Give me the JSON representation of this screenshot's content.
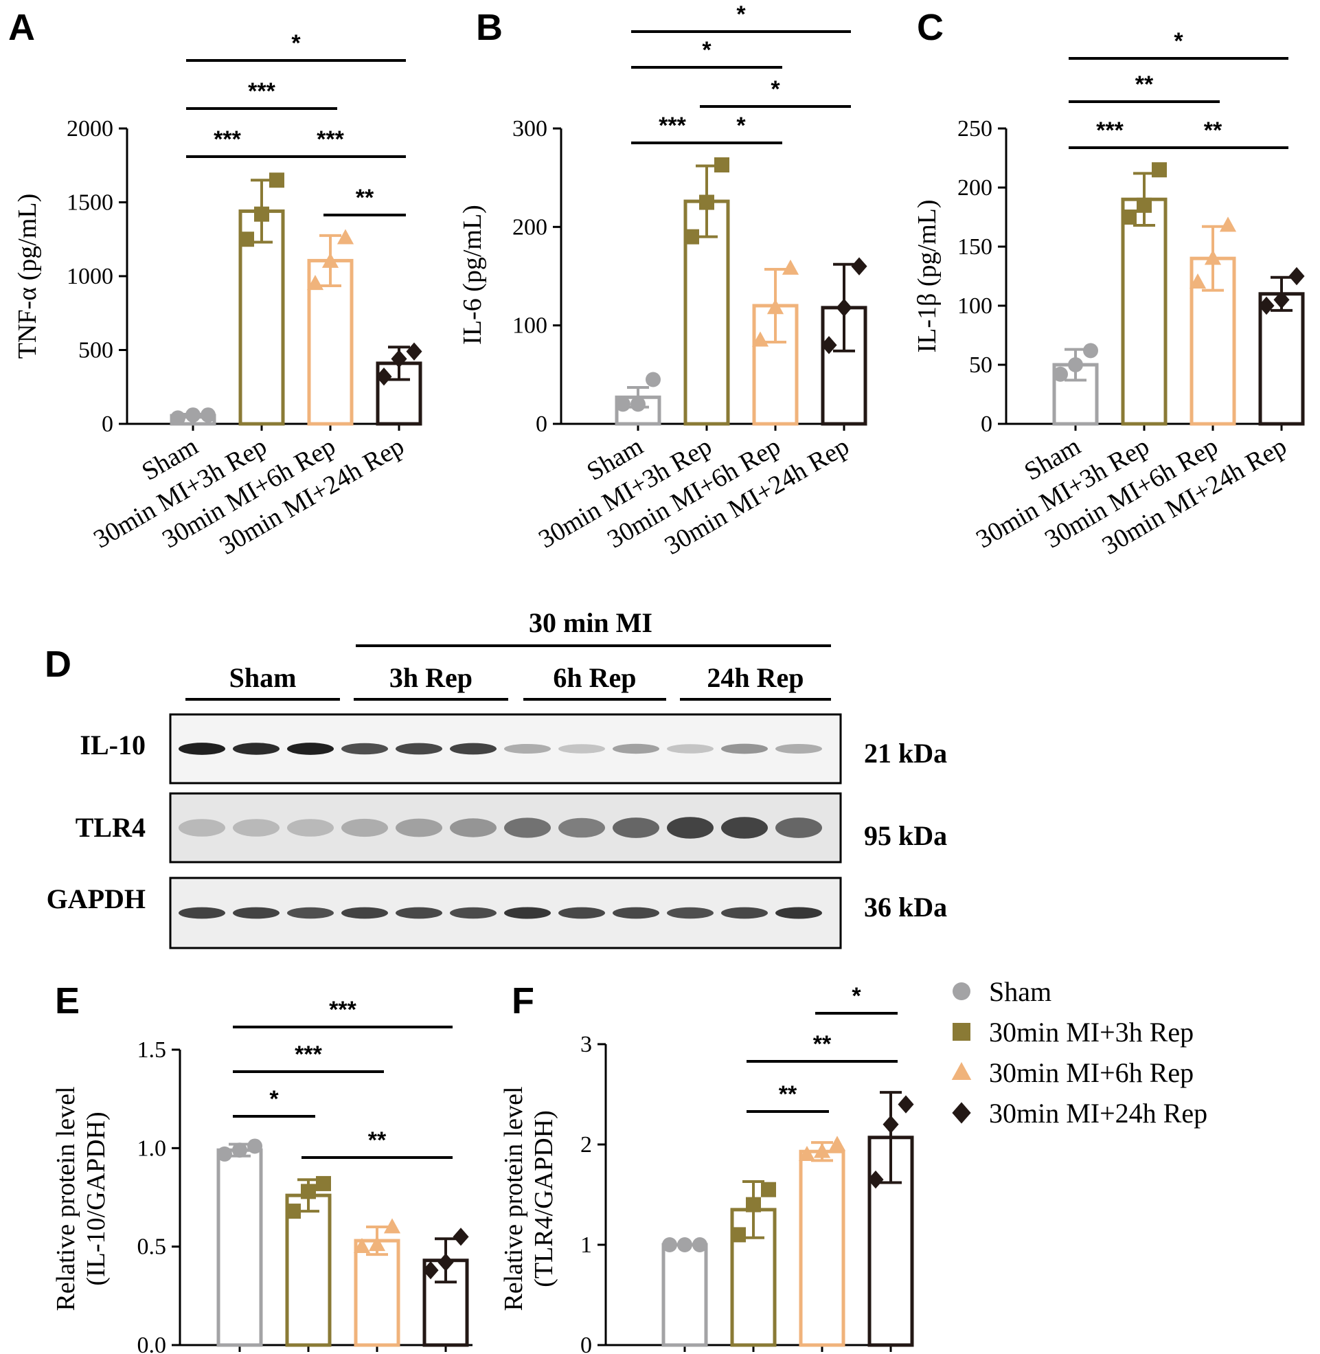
{
  "panel_letters": {
    "a": "A",
    "b": "B",
    "c": "C",
    "d": "D",
    "e": "E",
    "f": "F"
  },
  "colors": {
    "Sham": "#a3a3a5",
    "30min MI+3h Rep": "#8a7a35",
    "30min MI+6h Rep": "#f0b37b",
    "30min MI+24h Rep": "#231815"
  },
  "groups": [
    "Sham",
    "30min MI+3h Rep",
    "30min MI+6h Rep",
    "30min MI+24h Rep"
  ],
  "markers": [
    "circle",
    "square",
    "triangle",
    "diamond"
  ],
  "chart_data": [
    {
      "id": "A",
      "type": "bar",
      "categories": [
        "Sham",
        "30min MI+3h Rep",
        "30min MI+6h Rep",
        "30min MI+24h Rep"
      ],
      "values": [
        55,
        1440,
        1105,
        410
      ],
      "errors": [
        10,
        210,
        170,
        110
      ],
      "points": [
        [
          40,
          60,
          60
        ],
        [
          1250,
          1420,
          1650
        ],
        [
          950,
          1100,
          1260
        ],
        [
          320,
          440,
          490
        ]
      ],
      "ylabel": "TNF-α (pg/mL)",
      "ylim": [
        0,
        2000
      ],
      "yticks": [
        "0",
        "500",
        "1000",
        "1500",
        "2000"
      ],
      "significance": [
        {
          "from": 0,
          "to": 3,
          "label": "*"
        },
        {
          "from": 0,
          "to": 2,
          "label": "***"
        },
        {
          "from": 0,
          "to": 1,
          "label": "***"
        },
        {
          "from": 1,
          "to": 3,
          "label": "***"
        },
        {
          "from": 2,
          "to": 3,
          "label": "**"
        }
      ]
    },
    {
      "id": "B",
      "type": "bar",
      "categories": [
        "Sham",
        "30min MI+3h Rep",
        "30min MI+6h Rep",
        "30min MI+24h Rep"
      ],
      "values": [
        27,
        226,
        120,
        118
      ],
      "errors": [
        10,
        36,
        37,
        44
      ],
      "points": [
        [
          20,
          20,
          45
        ],
        [
          190,
          225,
          263
        ],
        [
          85,
          118,
          158
        ],
        [
          80,
          118,
          160
        ]
      ],
      "ylabel": "IL-6 (pg/mL)",
      "ylim": [
        0,
        300
      ],
      "yticks": [
        "0",
        "100",
        "200",
        "300"
      ],
      "significance": [
        {
          "from": 0,
          "to": 3,
          "label": "*"
        },
        {
          "from": 0,
          "to": 2,
          "label": "*"
        },
        {
          "from": 1,
          "to": 3,
          "label": "*"
        },
        {
          "from": 0,
          "to": 1,
          "label": "***"
        },
        {
          "from": 1,
          "to": 2,
          "label": "*"
        }
      ]
    },
    {
      "id": "C",
      "type": "bar",
      "categories": [
        "Sham",
        "30min MI+3h Rep",
        "30min MI+6h Rep",
        "30min MI+24h Rep"
      ],
      "values": [
        50,
        190,
        140,
        110
      ],
      "errors": [
        13,
        22,
        27,
        14
      ],
      "points": [
        [
          42,
          50,
          62
        ],
        [
          175,
          185,
          215
        ],
        [
          120,
          140,
          168
        ],
        [
          100,
          105,
          125
        ]
      ],
      "ylabel": "IL-1β (pg/mL)",
      "ylim": [
        0,
        250
      ],
      "yticks": [
        "0",
        "50",
        "100",
        "150",
        "200",
        "250"
      ],
      "significance": [
        {
          "from": 0,
          "to": 3,
          "label": "*"
        },
        {
          "from": 0,
          "to": 2,
          "label": "**"
        },
        {
          "from": 0,
          "to": 1,
          "label": "***"
        },
        {
          "from": 1,
          "to": 3,
          "label": "**"
        }
      ]
    },
    {
      "id": "E",
      "type": "bar",
      "categories": [
        "Sham",
        "30min MI+3h Rep",
        "30min MI+6h Rep",
        "30min MI+24h Rep"
      ],
      "values": [
        0.99,
        0.76,
        0.53,
        0.43
      ],
      "errors": [
        0.03,
        0.08,
        0.07,
        0.11
      ],
      "points": [
        [
          0.97,
          0.99,
          1.01
        ],
        [
          0.68,
          0.78,
          0.82
        ],
        [
          0.5,
          0.51,
          0.6
        ],
        [
          0.38,
          0.42,
          0.55
        ]
      ],
      "ylabel": "Relative protein level (IL-10/GAPDH)",
      "ylim": [
        0,
        1.5
      ],
      "yticks": [
        "0.0",
        "0.5",
        "1.0",
        "1.5"
      ],
      "significance": [
        {
          "from": 0,
          "to": 3,
          "label": "***"
        },
        {
          "from": 0,
          "to": 2,
          "label": "***"
        },
        {
          "from": 0,
          "to": 1,
          "label": "*"
        },
        {
          "from": 1,
          "to": 3,
          "label": "**"
        }
      ]
    },
    {
      "id": "F",
      "type": "bar",
      "categories": [
        "Sham",
        "30min MI+3h Rep",
        "30min MI+6h Rep",
        "30min MI+24h Rep"
      ],
      "values": [
        1.0,
        1.35,
        1.93,
        2.07
      ],
      "errors": [
        0.0,
        0.28,
        0.09,
        0.45
      ],
      "points": [
        [
          1.0,
          1.0,
          1.0
        ],
        [
          1.1,
          1.4,
          1.55
        ],
        [
          1.9,
          1.93,
          2.0
        ],
        [
          1.65,
          2.2,
          2.4
        ]
      ],
      "ylabel": "Relative protein level (TLR4/GAPDH)",
      "ylim": [
        0,
        3
      ],
      "yticks": [
        "0",
        "1",
        "2",
        "3"
      ],
      "significance": [
        {
          "from": 2,
          "to": 3,
          "label": "*"
        },
        {
          "from": 1,
          "to": 3,
          "label": "**"
        },
        {
          "from": 1,
          "to": 2,
          "label": "**"
        }
      ]
    }
  ],
  "blot": {
    "top_label": "30 min MI",
    "group_labels": [
      "Sham",
      "3h Rep",
      "6h Rep",
      "24h Rep"
    ],
    "rows": [
      {
        "name": "IL-10",
        "size": "21 kDa",
        "intensity": [
          0.95,
          0.9,
          0.95,
          0.75,
          0.78,
          0.8,
          0.35,
          0.25,
          0.4,
          0.25,
          0.45,
          0.35
        ]
      },
      {
        "name": "TLR4",
        "size": "95 kDa",
        "intensity": [
          0.3,
          0.3,
          0.3,
          0.35,
          0.4,
          0.45,
          0.6,
          0.55,
          0.65,
          0.8,
          0.8,
          0.65
        ]
      },
      {
        "name": "GAPDH",
        "size": "36 kDa",
        "intensity": [
          0.8,
          0.8,
          0.75,
          0.8,
          0.78,
          0.76,
          0.85,
          0.78,
          0.78,
          0.75,
          0.78,
          0.85
        ]
      }
    ]
  },
  "legend": [
    "Sham",
    "30min MI+3h Rep",
    "30min MI+6h Rep",
    "30min MI+24h Rep"
  ]
}
